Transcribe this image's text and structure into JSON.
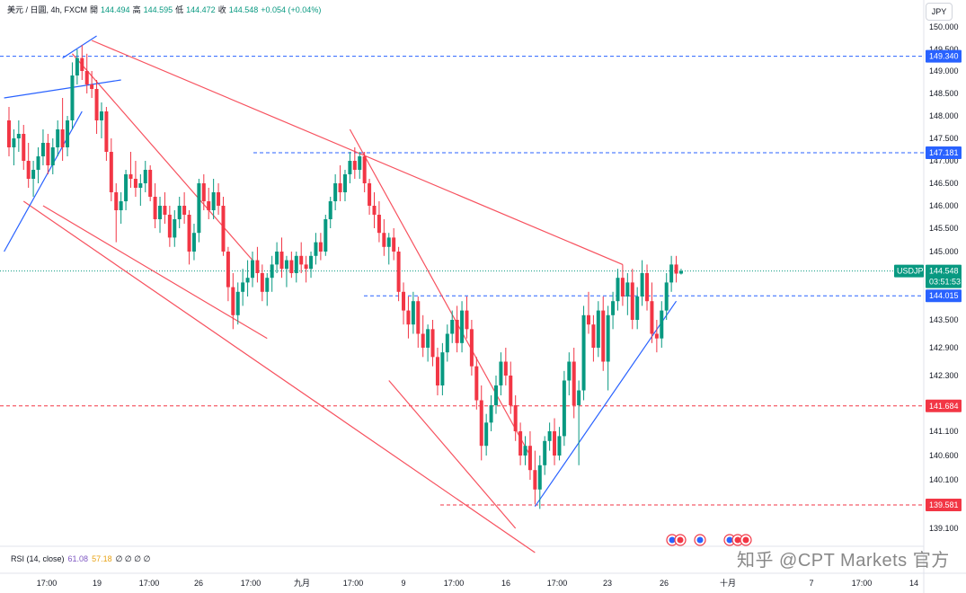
{
  "legend": {
    "symbol": "美元 / 日圓, 4h, FXCM",
    "open_label": "開",
    "open": "144.494",
    "high_label": "高",
    "high": "144.595",
    "low_label": "低",
    "low": "144.472",
    "close_label": "收",
    "close": "144.548",
    "change": "+0.054 (+0.04%)"
  },
  "currency": "JPY",
  "rsi": {
    "label": "RSI (14, close)",
    "value1": "61.08",
    "value2": "57.18",
    "extra": "∅ ∅ ∅ ∅"
  },
  "watermark": "知乎 @CPT Markets 官方",
  "colors": {
    "up": "#089981",
    "down": "#f23645",
    "trend_red": "#f7525f",
    "trend_blue": "#2962ff",
    "level_blue": "#2962ff",
    "level_red": "#f23645",
    "current": "#089981"
  },
  "chart_data": {
    "type": "candlestick",
    "symbol": "USDJPY",
    "timeframe": "4h",
    "y_ticks": [
      "150.000",
      "149.500",
      "149.000",
      "148.500",
      "148.000",
      "147.500",
      "147.000",
      "146.500",
      "146.000",
      "145.500",
      "145.000",
      "144.500",
      "144.000",
      "143.500",
      "142.900",
      "142.300",
      "141.700",
      "141.100",
      "140.600",
      "140.100",
      "139.100"
    ],
    "x_ticks": [
      "17:00",
      "19",
      "17:00",
      "26",
      "17:00",
      "九月",
      "17:00",
      "9",
      "17:00",
      "16",
      "17:00",
      "23",
      "26",
      "十月",
      "7",
      "17:00",
      "14"
    ],
    "current_price": {
      "label": "USDJPY",
      "value": "144.548",
      "countdown": "03:51:53"
    },
    "horizontal_levels": [
      {
        "value": "149.340",
        "color": "blue"
      },
      {
        "value": "147.181",
        "color": "blue"
      },
      {
        "value": "144.015",
        "color": "blue"
      },
      {
        "value": "141.684",
        "color": "red"
      },
      {
        "value": "139.581",
        "color": "red"
      }
    ],
    "candles": [
      [
        147.9,
        148.2,
        147.1,
        147.3
      ],
      [
        147.3,
        147.7,
        146.9,
        147.5
      ],
      [
        147.5,
        147.9,
        147.2,
        147.6
      ],
      [
        147.6,
        147.8,
        146.8,
        147.0
      ],
      [
        147.0,
        147.4,
        146.4,
        146.6
      ],
      [
        146.6,
        147.0,
        146.2,
        146.8
      ],
      [
        146.8,
        147.3,
        146.5,
        147.1
      ],
      [
        147.1,
        147.7,
        146.9,
        147.4
      ],
      [
        147.4,
        147.6,
        146.7,
        146.9
      ],
      [
        146.9,
        147.5,
        146.7,
        147.3
      ],
      [
        147.3,
        147.9,
        147.1,
        147.7
      ],
      [
        147.7,
        148.4,
        147.0,
        147.3
      ],
      [
        147.3,
        148.0,
        147.1,
        147.9
      ],
      [
        147.9,
        149.2,
        147.7,
        148.9
      ],
      [
        148.9,
        149.5,
        148.7,
        149.3
      ],
      [
        149.3,
        149.6,
        148.8,
        149.0
      ],
      [
        149.0,
        149.4,
        148.5,
        148.7
      ],
      [
        148.7,
        149.0,
        148.4,
        148.6
      ],
      [
        148.6,
        148.8,
        147.6,
        147.9
      ],
      [
        147.9,
        148.3,
        147.5,
        148.1
      ],
      [
        148.1,
        148.2,
        147.0,
        147.2
      ],
      [
        147.2,
        147.5,
        146.1,
        146.3
      ],
      [
        146.3,
        146.5,
        145.2,
        145.9
      ],
      [
        145.9,
        146.3,
        145.6,
        146.1
      ],
      [
        146.1,
        146.8,
        145.9,
        146.7
      ],
      [
        146.7,
        147.2,
        146.4,
        146.6
      ],
      [
        146.6,
        147.0,
        146.2,
        146.4
      ],
      [
        146.4,
        146.7,
        146.0,
        146.5
      ],
      [
        146.5,
        147.0,
        146.3,
        146.8
      ],
      [
        146.8,
        146.9,
        146.1,
        146.2
      ],
      [
        146.2,
        146.5,
        145.5,
        145.7
      ],
      [
        145.7,
        146.2,
        145.4,
        146.0
      ],
      [
        146.0,
        146.3,
        145.6,
        145.8
      ],
      [
        145.8,
        146.0,
        145.1,
        145.3
      ],
      [
        145.3,
        145.9,
        145.1,
        145.7
      ],
      [
        145.7,
        146.2,
        145.5,
        146.0
      ],
      [
        146.0,
        146.3,
        145.6,
        145.8
      ],
      [
        145.8,
        145.9,
        144.7,
        145.0
      ],
      [
        145.0,
        145.6,
        144.8,
        145.4
      ],
      [
        145.4,
        146.6,
        145.2,
        146.5
      ],
      [
        146.5,
        146.7,
        145.9,
        146.1
      ],
      [
        146.1,
        146.4,
        145.7,
        145.9
      ],
      [
        145.9,
        146.6,
        145.7,
        146.3
      ],
      [
        146.3,
        146.5,
        145.8,
        146.0
      ],
      [
        146.0,
        146.2,
        144.9,
        145.0
      ],
      [
        145.0,
        145.1,
        143.9,
        144.2
      ],
      [
        144.2,
        144.5,
        143.3,
        143.6
      ],
      [
        143.6,
        144.3,
        143.4,
        144.1
      ],
      [
        144.1,
        144.6,
        143.8,
        144.3
      ],
      [
        144.3,
        144.8,
        144.0,
        144.4
      ],
      [
        144.4,
        145.0,
        144.2,
        144.8
      ],
      [
        144.8,
        145.1,
        144.3,
        144.5
      ],
      [
        144.5,
        144.7,
        143.9,
        144.1
      ],
      [
        144.1,
        144.5,
        143.8,
        144.4
      ],
      [
        144.4,
        144.9,
        144.1,
        144.7
      ],
      [
        144.7,
        145.2,
        144.5,
        145.0
      ],
      [
        145.0,
        145.3,
        144.4,
        144.6
      ],
      [
        144.6,
        144.9,
        144.2,
        144.8
      ],
      [
        144.8,
        145.0,
        144.4,
        144.5
      ],
      [
        144.5,
        145.0,
        144.3,
        144.9
      ],
      [
        144.9,
        145.2,
        144.5,
        144.7
      ],
      [
        144.7,
        144.9,
        144.3,
        144.6
      ],
      [
        144.6,
        145.0,
        144.4,
        144.9
      ],
      [
        144.9,
        145.4,
        144.7,
        145.2
      ],
      [
        145.2,
        145.4,
        144.8,
        145.0
      ],
      [
        145.0,
        145.8,
        144.9,
        145.7
      ],
      [
        145.7,
        146.2,
        145.5,
        146.1
      ],
      [
        146.1,
        146.7,
        145.9,
        146.5
      ],
      [
        146.5,
        146.9,
        146.1,
        146.3
      ],
      [
        146.3,
        146.8,
        146.1,
        146.7
      ],
      [
        146.7,
        147.2,
        146.5,
        147.0
      ],
      [
        147.0,
        147.3,
        146.6,
        146.8
      ],
      [
        146.8,
        147.2,
        146.6,
        147.1
      ],
      [
        147.1,
        147.2,
        146.3,
        146.5
      ],
      [
        146.5,
        146.6,
        145.8,
        146.0
      ],
      [
        146.0,
        146.3,
        145.5,
        145.8
      ],
      [
        145.8,
        146.1,
        145.2,
        145.4
      ],
      [
        145.4,
        145.7,
        144.9,
        145.1
      ],
      [
        145.1,
        145.4,
        144.7,
        145.3
      ],
      [
        145.3,
        145.5,
        144.8,
        145.0
      ],
      [
        145.0,
        145.1,
        143.9,
        144.1
      ],
      [
        144.1,
        144.3,
        143.4,
        143.7
      ],
      [
        143.7,
        144.0,
        143.1,
        143.4
      ],
      [
        143.4,
        144.1,
        143.2,
        143.9
      ],
      [
        143.9,
        144.0,
        142.9,
        143.2
      ],
      [
        143.2,
        143.6,
        142.7,
        142.9
      ],
      [
        142.9,
        143.4,
        142.6,
        143.3
      ],
      [
        143.3,
        143.5,
        142.5,
        142.7
      ],
      [
        142.7,
        142.9,
        141.9,
        142.1
      ],
      [
        142.1,
        143.0,
        141.9,
        142.8
      ],
      [
        142.8,
        143.4,
        142.6,
        143.2
      ],
      [
        143.2,
        143.7,
        143.0,
        143.5
      ],
      [
        143.5,
        143.8,
        142.8,
        143.0
      ],
      [
        143.0,
        143.9,
        142.8,
        143.7
      ],
      [
        143.7,
        144.0,
        143.1,
        143.3
      ],
      [
        143.3,
        143.5,
        142.3,
        142.5
      ],
      [
        142.5,
        142.7,
        141.6,
        141.8
      ],
      [
        141.8,
        142.1,
        140.5,
        140.8
      ],
      [
        140.8,
        141.5,
        140.6,
        141.3
      ],
      [
        141.3,
        141.9,
        141.1,
        141.7
      ],
      [
        141.7,
        142.3,
        141.5,
        142.1
      ],
      [
        142.1,
        142.8,
        141.9,
        142.6
      ],
      [
        142.6,
        142.9,
        142.1,
        142.3
      ],
      [
        142.3,
        142.6,
        141.5,
        141.7
      ],
      [
        141.7,
        141.9,
        140.9,
        141.1
      ],
      [
        141.1,
        141.3,
        140.4,
        140.6
      ],
      [
        140.6,
        141.0,
        140.4,
        140.8
      ],
      [
        140.8,
        141.1,
        140.1,
        140.3
      ],
      [
        140.3,
        140.7,
        139.6,
        139.9
      ],
      [
        139.9,
        140.6,
        139.5,
        140.4
      ],
      [
        140.4,
        141.0,
        140.2,
        140.9
      ],
      [
        140.9,
        141.3,
        140.7,
        141.1
      ],
      [
        141.1,
        141.4,
        140.4,
        140.6
      ],
      [
        140.6,
        141.2,
        140.5,
        141.0
      ],
      [
        141.0,
        142.4,
        140.8,
        142.2
      ],
      [
        142.2,
        142.8,
        141.9,
        142.6
      ],
      [
        142.6,
        142.9,
        141.4,
        141.7
      ],
      [
        141.7,
        142.2,
        140.4,
        142.0
      ],
      [
        142.0,
        143.8,
        141.8,
        143.6
      ],
      [
        143.6,
        144.1,
        143.2,
        143.4
      ],
      [
        143.4,
        143.6,
        142.6,
        142.9
      ],
      [
        142.9,
        143.9,
        142.7,
        143.7
      ],
      [
        143.7,
        144.0,
        142.4,
        142.6
      ],
      [
        142.6,
        143.8,
        142.0,
        143.6
      ],
      [
        143.6,
        144.1,
        143.3,
        143.9
      ],
      [
        143.9,
        144.6,
        143.7,
        144.4
      ],
      [
        144.4,
        144.7,
        143.8,
        144.0
      ],
      [
        144.0,
        144.5,
        143.6,
        144.3
      ],
      [
        144.3,
        144.6,
        143.3,
        143.5
      ],
      [
        143.5,
        144.2,
        143.3,
        144.0
      ],
      [
        144.0,
        144.8,
        143.8,
        144.5
      ],
      [
        144.5,
        144.7,
        143.7,
        143.9
      ],
      [
        143.9,
        144.3,
        143.0,
        143.2
      ],
      [
        143.2,
        143.5,
        142.8,
        143.1
      ],
      [
        143.1,
        143.9,
        142.9,
        143.7
      ],
      [
        143.7,
        144.5,
        143.5,
        144.3
      ],
      [
        144.3,
        144.9,
        144.1,
        144.7
      ],
      [
        144.7,
        144.9,
        144.3,
        144.49
      ],
      [
        144.49,
        144.6,
        144.47,
        144.55
      ]
    ],
    "trend_lines": [
      {
        "color": "red",
        "from": [
          17,
          149.7
        ],
        "to": [
          126,
          144.7
        ]
      },
      {
        "color": "red",
        "from": [
          13,
          149.4
        ],
        "to": [
          50,
          144.8
        ]
      },
      {
        "color": "red",
        "from": [
          7,
          146.0
        ],
        "to": [
          53,
          143.1
        ]
      },
      {
        "color": "red",
        "from": [
          3,
          146.1
        ],
        "to": [
          108,
          138.6
        ]
      },
      {
        "color": "red",
        "from": [
          70,
          147.7
        ],
        "to": [
          107,
          140.6
        ]
      },
      {
        "color": "red",
        "from": [
          78,
          142.2
        ],
        "to": [
          104,
          139.1
        ]
      },
      {
        "color": "blue",
        "from": [
          -1,
          145.0
        ],
        "to": [
          15,
          148.1
        ]
      },
      {
        "color": "blue",
        "from": [
          -1,
          148.4
        ],
        "to": [
          23,
          148.8
        ]
      },
      {
        "color": "blue",
        "from": [
          11,
          149.3
        ],
        "to": [
          18,
          149.8
        ]
      },
      {
        "color": "blue",
        "from": [
          108,
          139.55
        ],
        "to": [
          137,
          143.9
        ]
      }
    ]
  }
}
